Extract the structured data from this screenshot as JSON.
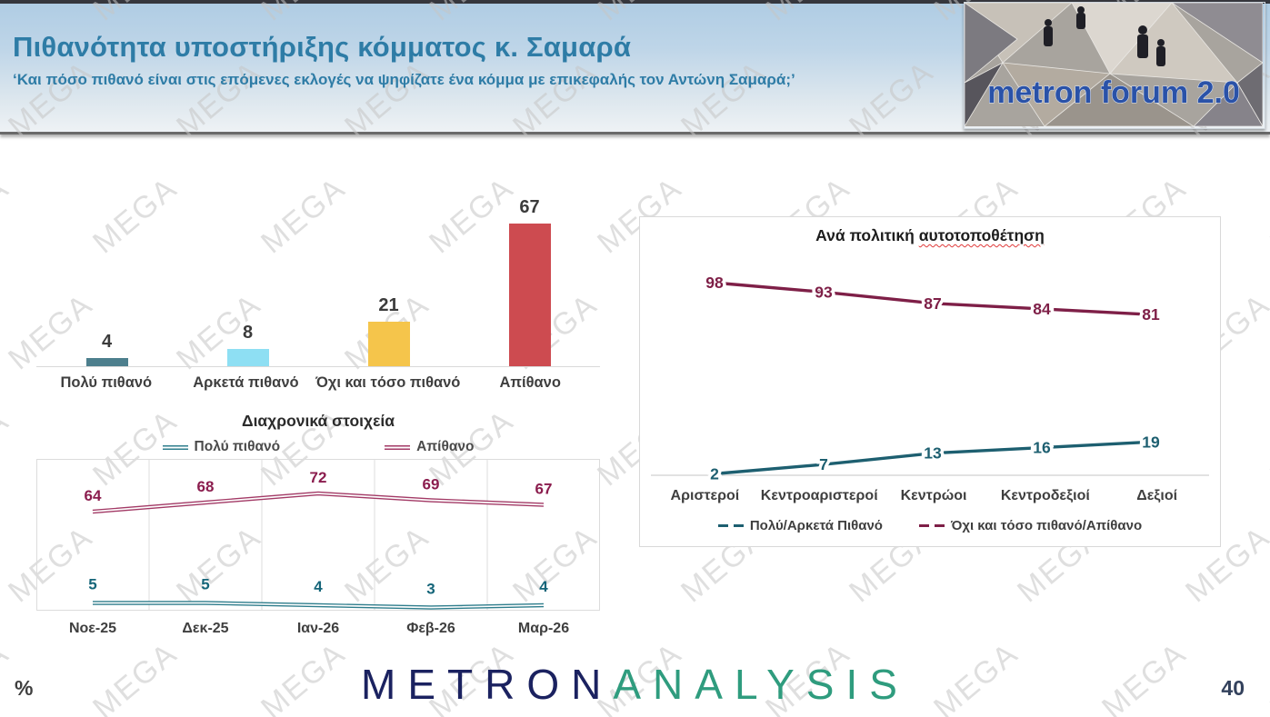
{
  "header": {
    "title": "Πιθανότητα υποστήριξης κόμματος κ. Σαμαρά",
    "subtitle": "‘Και πόσο πιθανό είναι στις επόμενες εκλογές να ψηφίζατε ένα κόμμα με επικεφαλής τον Αντώνη Σαμαρά;’",
    "logo_text": "metron forum 2.0"
  },
  "watermark": {
    "text": "MEGA"
  },
  "chart_data": [
    {
      "type": "bar",
      "title": "",
      "categories": [
        "Πολύ πιθανό",
        "Αρκετά πιθανό",
        "Όχι και τόσο πιθανό",
        "Απίθανο"
      ],
      "values": [
        4,
        8,
        21,
        67
      ],
      "bar_colors": [
        "#4d7f8d",
        "#8edff3",
        "#f5c54b",
        "#cd4b50"
      ],
      "xlabel": "",
      "ylabel": "",
      "ylim": [
        0,
        75
      ],
      "grid": false,
      "legend_position": "none"
    },
    {
      "type": "line",
      "title": "Διαχρονικά στοιχεία",
      "categories": [
        "Νοε-25",
        "Δεκ-25",
        "Ιαν-26",
        "Φεβ-26",
        "Μαρ-26"
      ],
      "series": [
        {
          "name": "Πολύ πιθανό",
          "values": [
            5,
            5,
            4,
            3,
            4
          ],
          "color": "#2e7d8c",
          "label_color": "#156579"
        },
        {
          "name": "Απίθανο",
          "values": [
            64,
            68,
            72,
            69,
            67
          ],
          "color": "#a33a66",
          "label_color": "#8b1d4e"
        }
      ],
      "xlabel": "",
      "ylabel": "",
      "ylim": [
        0,
        100
      ],
      "grid": "vertical",
      "legend_position": "top"
    },
    {
      "type": "line",
      "title_prefix": "Ανά πολιτική ",
      "title_underlined_word": "αυτοτοποθέτηση",
      "categories": [
        "Αριστεροί",
        "Κεντροαριστεροί",
        "Κεντρώοι",
        "Κεντροδεξιοί",
        "Δεξιοί"
      ],
      "series": [
        {
          "name": "Πολύ/Αρκετά Πιθανό",
          "values": [
            2,
            7,
            13,
            16,
            19
          ],
          "color": "#1d5f70",
          "label_color": "#1d5f70"
        },
        {
          "name": "Όχι και τόσο πιθανό/Απίθανο",
          "values": [
            98,
            93,
            87,
            84,
            81
          ],
          "color": "#7e1f47",
          "label_color": "#7e1f47"
        }
      ],
      "xlabel": "",
      "ylabel": "",
      "ylim": [
        0,
        100
      ],
      "grid": false,
      "legend_position": "bottom"
    }
  ],
  "footer": {
    "unit_label": "%",
    "page_number": "40",
    "logo": {
      "part1": "METRON",
      "part2": "ANALYSIS"
    }
  }
}
